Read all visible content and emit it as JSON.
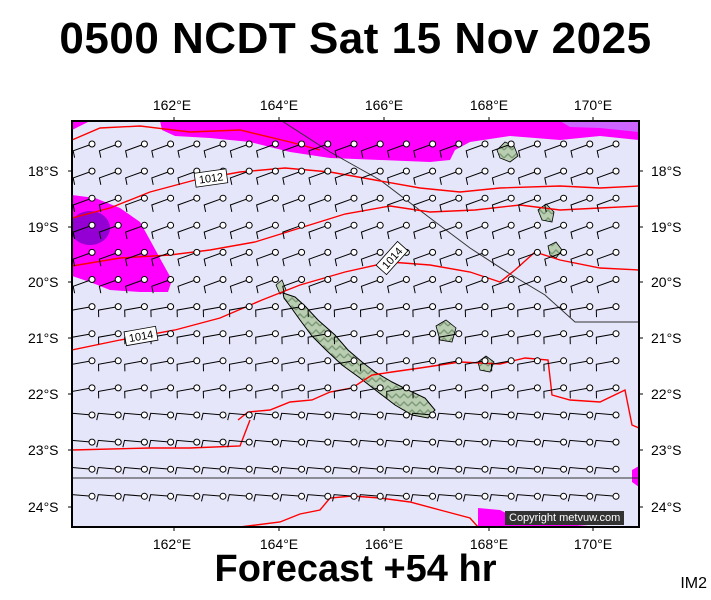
{
  "title": "0500 NCDT Sat 15 Nov 2025",
  "footer": "Forecast +54 hr",
  "image_code": "IM2",
  "copyright": "Copyright metvuw.com",
  "lon_labels": [
    "162°E",
    "164°E",
    "166°E",
    "168°E",
    "170°E"
  ],
  "lat_labels": [
    "18°S",
    "19°S",
    "20°S",
    "21°S",
    "22°S",
    "23°S",
    "24°S"
  ],
  "isobar_labels": [
    "1012",
    "1014",
    "1014"
  ],
  "colors": {
    "background_rain": "#e6e6fa",
    "rain_heavy": "#ff00ff",
    "rain_very_heavy": "#9400d3",
    "isobar": "#ff0000",
    "land": "#a9c4a2"
  }
}
